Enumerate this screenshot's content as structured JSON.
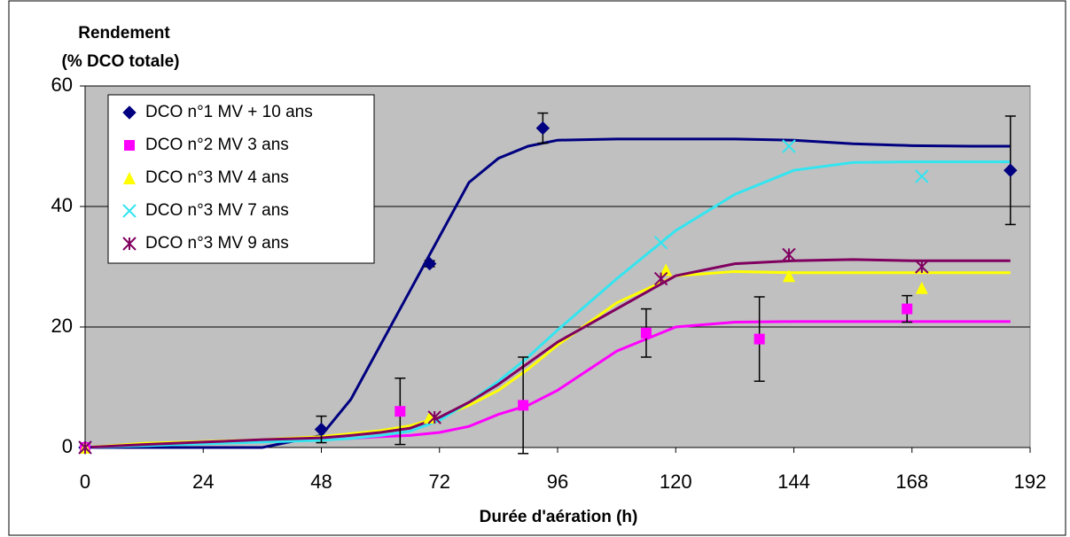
{
  "chart_data": {
    "type": "scatter",
    "y_title_lines": [
      "Rendement",
      "(% DCO totale)"
    ],
    "x_title": "Durée d'aération (h)",
    "xlim": [
      0,
      192
    ],
    "xticks": [
      0,
      24,
      48,
      72,
      96,
      120,
      144,
      168,
      192
    ],
    "ylim": [
      0,
      60
    ],
    "yticks": [
      0,
      20,
      40,
      60
    ],
    "grid": true,
    "legend": "top-left",
    "fit_x": [
      0,
      12,
      24,
      36,
      48,
      54,
      60,
      66,
      72,
      78,
      84,
      90,
      96,
      108,
      120,
      132,
      144,
      156,
      168,
      180,
      188
    ],
    "series": [
      {
        "name": "DCO n°1 MV + 10 ans",
        "color": "#000080",
        "marker": "diamond",
        "x": [
          0,
          48,
          70,
          93,
          188
        ],
        "values": [
          0,
          3,
          30.5,
          53,
          46
        ],
        "errors": [
          null,
          2.2,
          0.5,
          2.5,
          9
        ],
        "fit": [
          0,
          0,
          0,
          0,
          2,
          8,
          17,
          26,
          35,
          44,
          48,
          50,
          51,
          51.2,
          51.2,
          51.2,
          51,
          50.4,
          50.1,
          50,
          50
        ]
      },
      {
        "name": "DCO n°2 MV 3 ans",
        "color": "#FF00FF",
        "marker": "square",
        "x": [
          0,
          64,
          89,
          114,
          137,
          167
        ],
        "values": [
          0,
          6,
          7,
          19,
          18,
          23
        ],
        "errors": [
          null,
          5.5,
          8,
          4,
          7,
          2.2
        ],
        "fit": [
          0,
          0.5,
          0.8,
          1,
          1.3,
          1.5,
          1.8,
          2,
          2.5,
          3.5,
          5.5,
          7,
          9.5,
          16,
          20,
          20.8,
          20.9,
          20.9,
          20.9,
          20.9,
          20.9
        ]
      },
      {
        "name": "DCO n°3 MV 4 ans",
        "color": "#FFFF00",
        "marker": "triangle",
        "x": [
          0,
          70,
          118,
          143,
          170
        ],
        "values": [
          0,
          5,
          29.5,
          28.5,
          26.5
        ],
        "errors": [
          null,
          null,
          null,
          null,
          null
        ],
        "fit": [
          0,
          0.7,
          1,
          1.3,
          1.8,
          2.3,
          2.8,
          3.6,
          5,
          7,
          9.5,
          13,
          17,
          24,
          28.5,
          29.2,
          29,
          29,
          29,
          29,
          29
        ]
      },
      {
        "name": "DCO n°3 MV 7 ans",
        "color": "#33E5F0",
        "marker": "cross",
        "x": [
          0,
          117,
          143,
          170
        ],
        "values": [
          0,
          34,
          50,
          45
        ],
        "errors": [
          null,
          null,
          null,
          null
        ],
        "fit": [
          0,
          0.3,
          0.6,
          0.9,
          1.2,
          1.5,
          2,
          2.7,
          4.5,
          7.5,
          11,
          15,
          19.5,
          28,
          36,
          42,
          46,
          47.3,
          47.4,
          47.4,
          47.4
        ]
      },
      {
        "name": "DCO n°3 MV 9 ans",
        "color": "#800060",
        "marker": "star",
        "x": [
          0,
          71,
          117,
          143,
          170
        ],
        "values": [
          0,
          5,
          28,
          32,
          30
        ],
        "errors": [
          null,
          null,
          null,
          null,
          null
        ],
        "fit": [
          0,
          0.5,
          0.9,
          1.3,
          1.6,
          2,
          2.5,
          3.2,
          5,
          7.5,
          10.5,
          14,
          17.5,
          23,
          28.5,
          30.5,
          31,
          31.2,
          31,
          31,
          31
        ]
      }
    ]
  }
}
